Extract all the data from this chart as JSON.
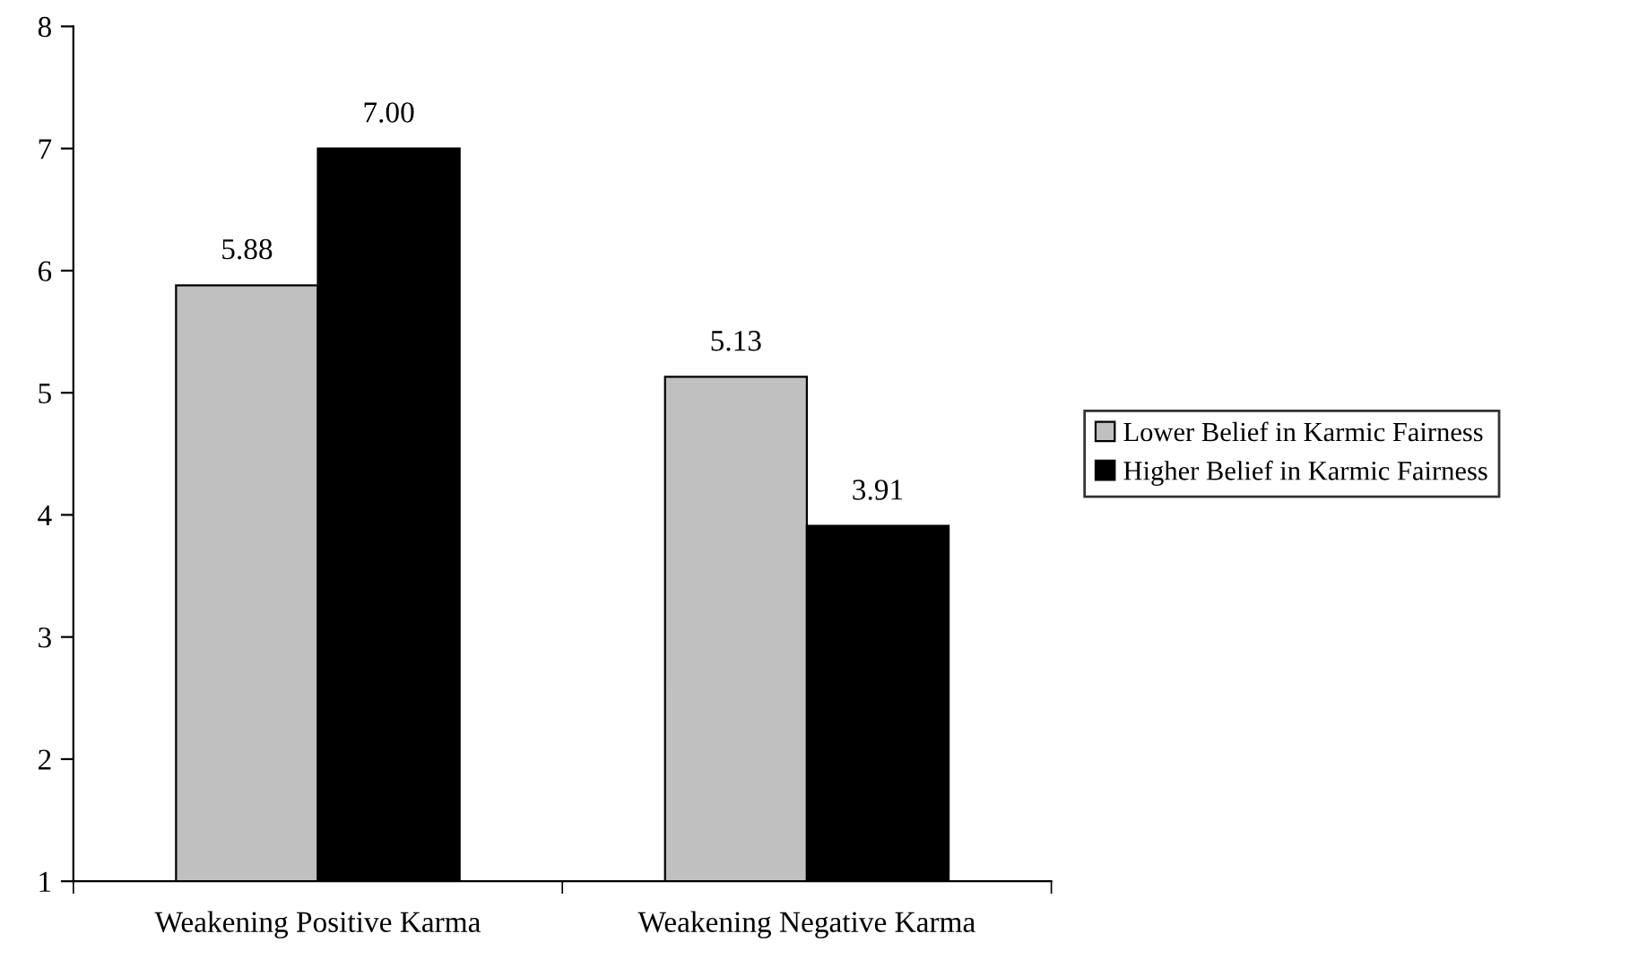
{
  "chart_data": {
    "type": "bar",
    "categories": [
      "Weakening Positive Karma",
      "Weakening Negative Karma"
    ],
    "series": [
      {
        "name": "Lower Belief in Karmic Fairness",
        "color": "#c0c0c0",
        "values": [
          5.88,
          5.13
        ],
        "value_labels": [
          "5.88",
          "5.13"
        ]
      },
      {
        "name": "Higher Belief in Karmic Fairness",
        "color": "#000000",
        "values": [
          7.0,
          3.91
        ],
        "value_labels": [
          "7.00",
          "3.91"
        ]
      }
    ],
    "ylim": [
      1,
      8
    ],
    "yticks": [
      1,
      2,
      3,
      4,
      5,
      6,
      7,
      8
    ],
    "grid": false,
    "legend": "right"
  }
}
